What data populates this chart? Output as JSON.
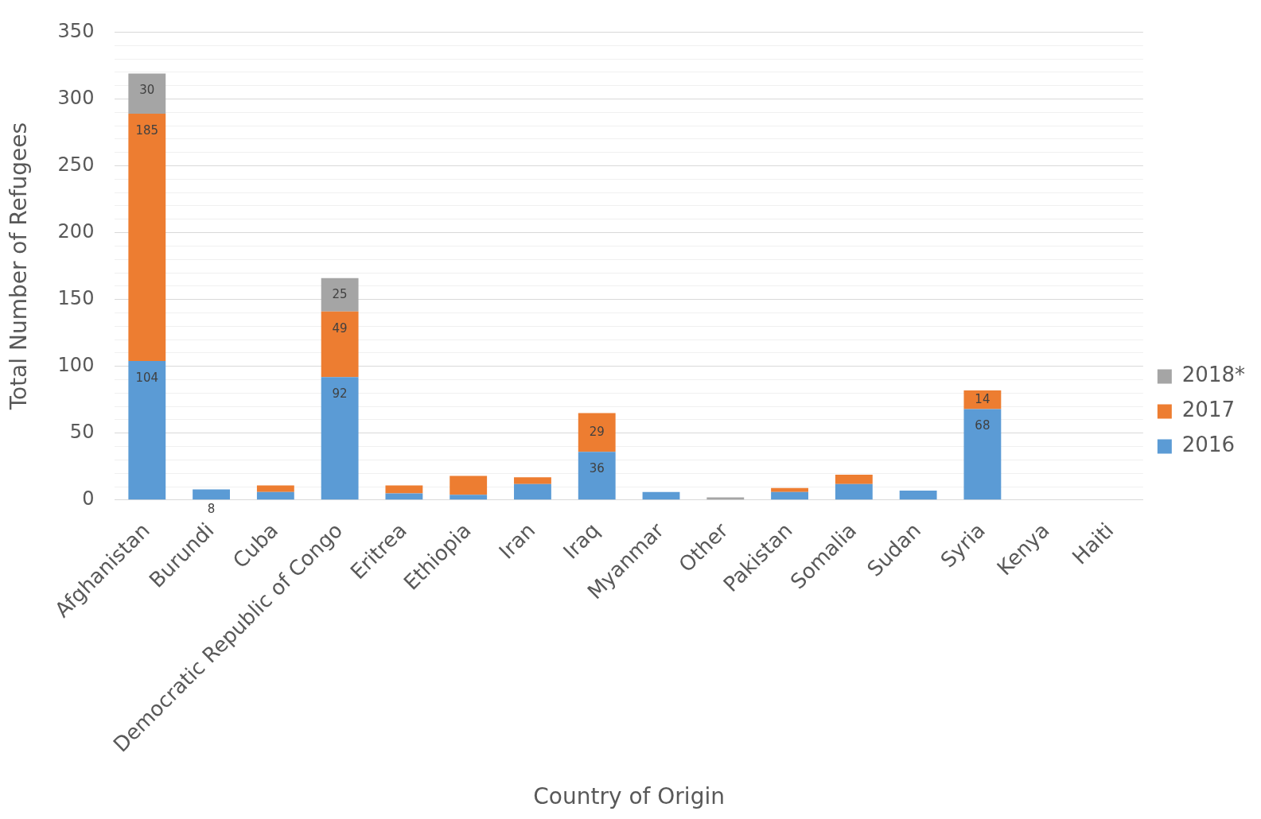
{
  "chart_data": {
    "type": "bar",
    "stacked": true,
    "xlabel": "Country of Origin",
    "ylabel": "Total Number of Refugees",
    "categories": [
      "Afghanistan",
      "Burundi",
      "Cuba",
      "Democratic Republic of Congo",
      "Eritrea",
      "Ethiopia",
      "Iran",
      "Iraq",
      "Myanmar",
      "Other",
      "Pakistan",
      "Somalia",
      "Sudan",
      "Syria",
      "Kenya",
      "Haiti"
    ],
    "series": [
      {
        "name": "2016",
        "color": "#5b9bd5",
        "values": [
          104,
          8,
          6,
          92,
          5,
          4,
          12,
          36,
          6,
          null,
          6,
          12,
          7,
          68,
          null,
          null
        ],
        "value_labels": [
          "104",
          "8",
          null,
          "92",
          null,
          null,
          null,
          "36",
          null,
          null,
          null,
          null,
          null,
          "68",
          null,
          null
        ]
      },
      {
        "name": "2017",
        "color": "#ed7d31",
        "values": [
          185,
          null,
          5,
          49,
          6,
          14,
          5,
          29,
          null,
          null,
          3,
          7,
          null,
          14,
          null,
          null
        ],
        "value_labels": [
          "185",
          null,
          null,
          "49",
          null,
          null,
          null,
          "29",
          null,
          null,
          null,
          null,
          null,
          "14",
          null,
          null
        ]
      },
      {
        "name": "2018*",
        "color": "#a5a5a5",
        "values": [
          30,
          null,
          null,
          25,
          null,
          null,
          null,
          null,
          null,
          2,
          null,
          null,
          null,
          null,
          null,
          null
        ],
        "value_labels": [
          "30",
          null,
          null,
          "25",
          null,
          null,
          null,
          null,
          null,
          null,
          null,
          null,
          null,
          null,
          null,
          null
        ]
      }
    ],
    "ylim": [
      0,
      350
    ],
    "yticks": [
      0,
      {
        "value": 10,
        "label": null
      },
      {
        "value": 20,
        "label": null
      },
      {
        "value": 30,
        "label": null
      },
      {
        "value": 40,
        "label": null
      },
      50,
      {
        "value": 60,
        "label": null
      },
      {
        "value": 70,
        "label": null
      },
      {
        "value": 80,
        "label": null
      },
      {
        "value": 90,
        "label": null
      },
      100,
      {
        "value": 110,
        "label": null
      },
      {
        "value": 120,
        "label": null
      },
      {
        "value": 130,
        "label": null
      },
      {
        "value": 140,
        "label": null
      },
      150,
      {
        "value": 160,
        "label": null
      },
      {
        "value": 170,
        "label": null
      },
      {
        "value": 180,
        "label": null
      },
      {
        "value": 190,
        "label": null
      },
      200,
      {
        "value": 210,
        "label": null
      },
      {
        "value": 220,
        "label": null
      },
      {
        "value": 230,
        "label": null
      },
      {
        "value": 240,
        "label": null
      },
      250,
      {
        "value": 260,
        "label": null
      },
      {
        "value": 270,
        "label": null
      },
      {
        "value": 280,
        "label": null
      },
      {
        "value": 290,
        "label": null
      },
      300,
      {
        "value": 310,
        "label": null
      },
      {
        "value": 320,
        "label": null
      },
      {
        "value": 330,
        "label": null
      },
      {
        "value": 340,
        "label": null
      },
      350
    ],
    "grid": "y",
    "legend": "right"
  }
}
